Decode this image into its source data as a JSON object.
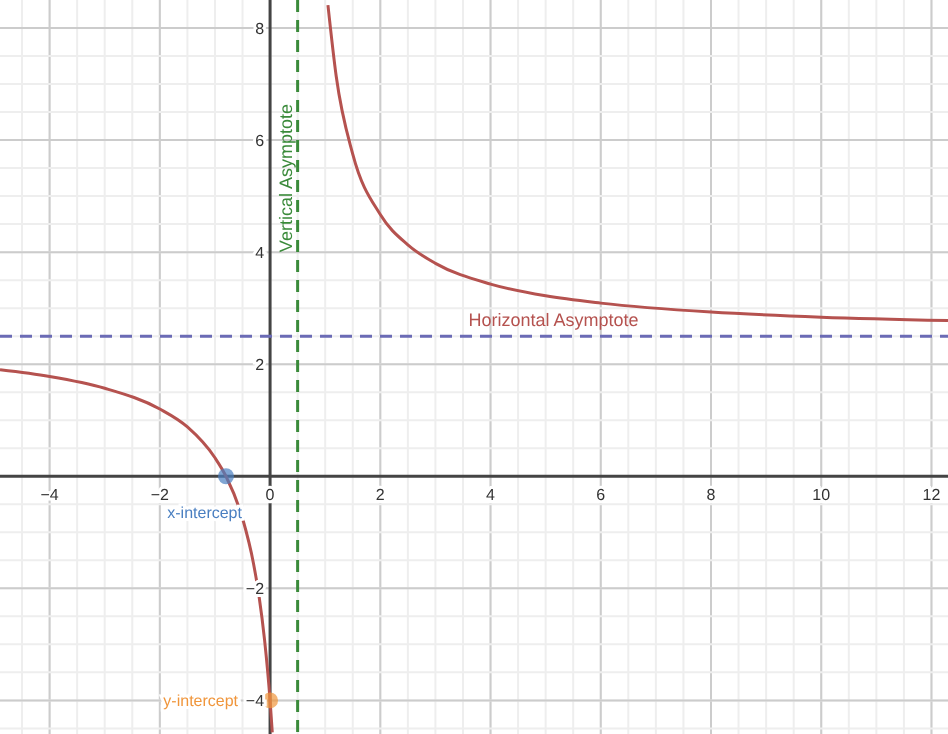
{
  "chart_data": {
    "type": "line",
    "xlim": [
      -4.9,
      12.3
    ],
    "ylim": [
      -4.6,
      8.5
    ],
    "xticks": [
      -4,
      -2,
      0,
      2,
      4,
      6,
      8,
      10,
      12
    ],
    "yticks": [
      -4,
      -2,
      2,
      4,
      6,
      8
    ],
    "grid": true,
    "line_style": "solid",
    "series": [
      {
        "color": "#b5524f",
        "marker": "none",
        "x": [
          -4.9,
          -4,
          -3,
          -2,
          -1.5,
          -1,
          -0.8,
          -0.5,
          -0.3,
          -0.2,
          -0.1,
          0,
          0.04
        ],
        "values": [
          1.9,
          1.78,
          1.57,
          1.2,
          0.88,
          0.33,
          0,
          -0.75,
          -1.56,
          -2.14,
          -2.92,
          -4,
          -4.57
        ]
      },
      {
        "color": "#b5524f",
        "marker": "none",
        "x": [
          1.05,
          1.2,
          1.5,
          2,
          2.5,
          3,
          4,
          5,
          6,
          8,
          10,
          12.3
        ],
        "values": [
          8.41,
          7.14,
          5.75,
          4.67,
          4.13,
          3.8,
          3.43,
          3.22,
          3.09,
          2.93,
          2.84,
          2.78
        ]
      },
      {
        "type": "scatter",
        "name": "x-intercept",
        "color": "#4a7fc1",
        "marker": "circle",
        "x": [
          -0.8
        ],
        "values": [
          0
        ]
      },
      {
        "type": "scatter",
        "name": "y-intercept",
        "color": "#f0963c",
        "marker": "circle",
        "x": [
          0
        ],
        "values": [
          -4
        ]
      }
    ],
    "ref_lines": [
      {
        "axis": "x",
        "value": 0.5,
        "label": "Vertical Asymptote",
        "color": "#3a8a3a",
        "line_style": "dashed"
      },
      {
        "axis": "y",
        "value": 2.5,
        "label": "Horizontal Asymptote",
        "color": "#6b6bb5",
        "line_style": "dashed"
      }
    ]
  }
}
